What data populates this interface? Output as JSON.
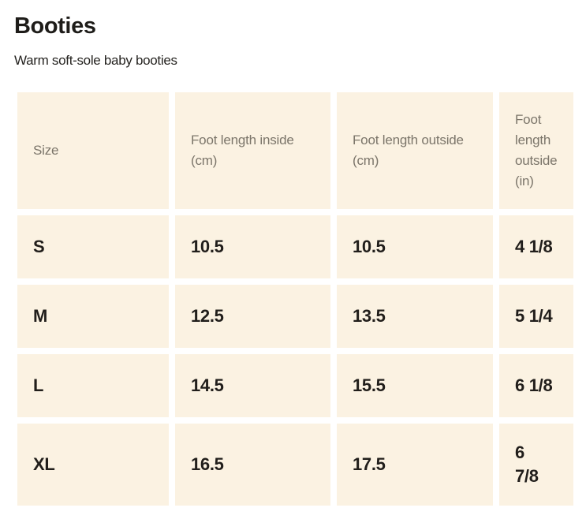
{
  "page": {
    "title": "Booties",
    "subtitle": "Warm soft-sole baby booties"
  },
  "colors": {
    "page_background": "#ffffff",
    "cell_background": "#fbf2e2",
    "header_text": "#7b756a",
    "body_text": "#211e1b"
  },
  "table": {
    "headers": [
      "Size",
      "Foot length inside (cm)",
      "Foot length outside (cm)",
      "Foot length outside (in)"
    ],
    "rows": [
      {
        "cells": [
          "S",
          "10.5",
          "10.5",
          "4 1/8"
        ]
      },
      {
        "cells": [
          "M",
          "12.5",
          "13.5",
          "5 1/4"
        ]
      },
      {
        "cells": [
          "L",
          "14.5",
          "15.5",
          "6 1/8"
        ]
      },
      {
        "cells": [
          "XL",
          "16.5",
          "17.5",
          "6\n7/8"
        ]
      }
    ]
  },
  "chart_data": {
    "type": "table",
    "title": "Booties",
    "subtitle": "Warm soft-sole baby booties",
    "columns": [
      "Size",
      "Foot length inside (cm)",
      "Foot length outside (cm)",
      "Foot length outside (in)"
    ],
    "rows": [
      [
        "S",
        "10.5",
        "10.5",
        "4 1/8"
      ],
      [
        "M",
        "12.5",
        "13.5",
        "5 1/4"
      ],
      [
        "L",
        "14.5",
        "15.5",
        "6 1/8"
      ],
      [
        "XL",
        "16.5",
        "17.5",
        "6 7/8"
      ]
    ]
  }
}
